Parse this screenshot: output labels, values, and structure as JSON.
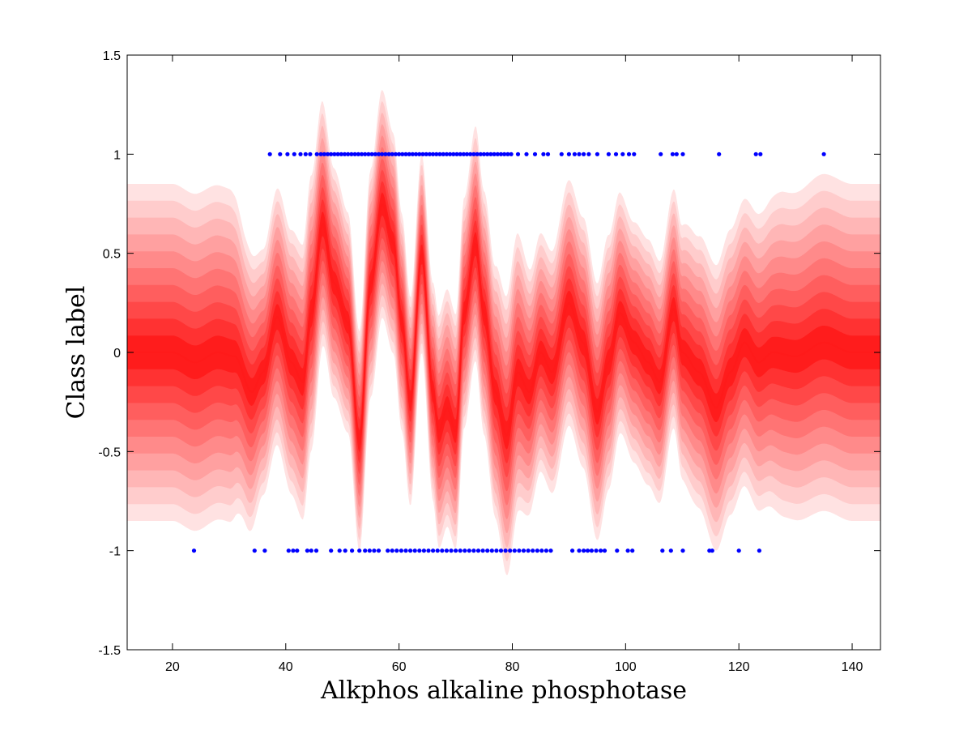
{
  "chart_data": {
    "type": "area",
    "title": "",
    "xlabel": "Alkphos alkaline phosphotase",
    "ylabel": "Class label",
    "xlim": [
      12,
      145
    ],
    "ylim": [
      -1.5,
      1.5
    ],
    "xticks": [
      20,
      40,
      60,
      80,
      100,
      120,
      140
    ],
    "xtick_labels": [
      "20",
      "40",
      "60",
      "80",
      "100",
      "120",
      "140"
    ],
    "yticks": [
      -1.5,
      -1,
      -0.5,
      0,
      0.5,
      1,
      1.5
    ],
    "ytick_labels": [
      "-1.5",
      "-1",
      "-0.5",
      "0",
      "0.5",
      "1",
      "1.5"
    ],
    "grid": false,
    "legend": "none",
    "colors": {
      "mean_line": "#ff1a1a",
      "band_outer": "#ffe0e0",
      "band_inner": "#ff2222",
      "points": "#0000ff"
    },
    "predictive_mean": {
      "x": [
        12,
        20,
        24,
        28,
        31,
        34,
        36,
        38.5,
        41,
        43,
        44.5,
        46.5,
        48.5,
        51,
        53,
        55,
        57,
        59,
        60.5,
        62,
        64,
        66,
        67,
        68.5,
        70,
        71.5,
        73.5,
        75,
        77,
        79,
        81,
        83,
        85,
        87,
        90,
        92.5,
        95,
        97,
        99,
        101.5,
        104,
        106,
        108.5,
        110,
        113,
        116,
        118.5,
        121,
        123.5,
        126,
        130,
        135,
        140,
        145
      ],
      "y": [
        0,
        0,
        -0.05,
        0,
        -0.02,
        -0.2,
        -0.1,
        0.18,
        -0.05,
        -0.15,
        0.2,
        0.65,
        0.35,
        0.15,
        -0.45,
        0.35,
        0.75,
        0.55,
        0.15,
        -0.25,
        0.5,
        -0.2,
        -0.4,
        -0.28,
        -0.4,
        0.2,
        0.55,
        0.2,
        -0.2,
        -0.42,
        -0.1,
        -0.2,
        0,
        -0.1,
        0.25,
        0.05,
        -0.3,
        -0.05,
        0.2,
        0.05,
        -0.05,
        -0.15,
        0.22,
        0,
        -0.1,
        -0.28,
        -0.1,
        0.05,
        -0.05,
        0,
        -0.02,
        0.05,
        0,
        0
      ]
    },
    "band_halfwidth": {
      "x": [
        12,
        25,
        30,
        33,
        36,
        40,
        44,
        48,
        52,
        56,
        60,
        64,
        68,
        72,
        76,
        80,
        84,
        90,
        96,
        100,
        104,
        108,
        112,
        116,
        120,
        124,
        128,
        135,
        145
      ],
      "y": [
        0.85,
        0.85,
        0.84,
        0.72,
        0.62,
        0.66,
        0.7,
        0.58,
        0.55,
        0.58,
        0.55,
        0.5,
        0.6,
        0.58,
        0.62,
        0.72,
        0.6,
        0.62,
        0.65,
        0.6,
        0.62,
        0.6,
        0.68,
        0.72,
        0.72,
        0.75,
        0.82,
        0.85,
        0.85
      ]
    },
    "series": [
      {
        "class": 1,
        "x": [
          37.2,
          39,
          40.3,
          41.5,
          42.6,
          43.5,
          44.3,
          45.5,
          46.2,
          46.8,
          47.4,
          48,
          48.6,
          49.2,
          49.8,
          50.4,
          51,
          51.6,
          52.2,
          52.8,
          53.4,
          54,
          54.6,
          55.2,
          55.8,
          56.4,
          57,
          57.6,
          58.2,
          58.8,
          59.4,
          60,
          60.6,
          61.2,
          61.8,
          62.4,
          63,
          63.6,
          64.2,
          64.8,
          65.4,
          66,
          66.6,
          67.2,
          67.8,
          68.4,
          69,
          69.6,
          70.2,
          70.8,
          71.4,
          72,
          72.6,
          73.2,
          73.8,
          74.4,
          75,
          75.6,
          76.2,
          76.8,
          77.4,
          78,
          78.6,
          79.2,
          79.8,
          81,
          82.5,
          84,
          85.5,
          86.3,
          88.7,
          90,
          91,
          91.8,
          92.6,
          93.5,
          95,
          97,
          98.3,
          99.5,
          100.6,
          101.5,
          106.2,
          108.3,
          109,
          110.1,
          116.5,
          123,
          123.8,
          135
        ]
      },
      {
        "class": -1,
        "x": [
          23.8,
          34.5,
          36.3,
          40.5,
          41.3,
          42,
          43.8,
          44.5,
          45.4,
          48,
          49.5,
          50.5,
          51.7,
          53,
          54,
          54.8,
          55.6,
          56.4,
          58,
          58.8,
          59.6,
          60.4,
          61.2,
          62,
          62.8,
          63.6,
          64.4,
          65.2,
          66,
          66.8,
          67.6,
          68.4,
          69.2,
          70,
          70.8,
          71.6,
          72.4,
          73.2,
          74,
          74.8,
          75.6,
          76.4,
          77.2,
          78,
          78.8,
          79.6,
          80.4,
          81.2,
          82,
          82.8,
          83.6,
          84.4,
          85.2,
          86,
          86.8,
          90.6,
          91.8,
          92.6,
          93.3,
          94,
          94.8,
          95.6,
          96.3,
          98.5,
          100.4,
          101.2,
          106.5,
          108,
          110.1,
          114.8,
          115.3,
          120,
          123.6
        ]
      }
    ]
  }
}
